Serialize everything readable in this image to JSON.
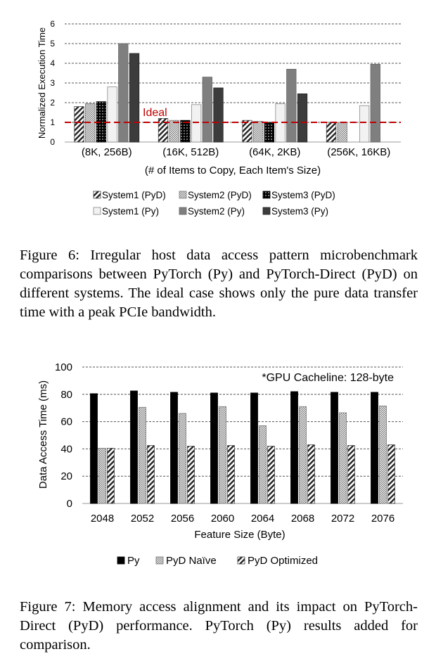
{
  "figure6": {
    "caption": "Figure 6: Irregular host data access pattern microbenchmark comparisons between PyTorch (Py) and PyTorch-Direct (PyD) on different systems. The ideal case shows only the pure data transfer time with a peak PCIe bandwidth.",
    "ideal_label": "Ideal",
    "chart_data": {
      "type": "bar",
      "ylabel": "Normalized Execution Time",
      "xlabel": "(# of Items to Copy, Each Item's Size)",
      "ylim": [
        0,
        6
      ],
      "yticks": [
        "0",
        "1",
        "2",
        "3",
        "4",
        "5",
        "6"
      ],
      "grid": true,
      "legend_position": "bottom",
      "categories": [
        "(8K, 256B)",
        "(16K, 512B)",
        "(64K, 2KB)",
        "(256K, 16KB)"
      ],
      "ideal_line": 1,
      "series": [
        {
          "name": "System1 (PyD)",
          "values": [
            1.8,
            1.2,
            1.1,
            1.0
          ]
        },
        {
          "name": "System2 (PyD)",
          "values": [
            1.95,
            1.1,
            1.05,
            1.0
          ]
        },
        {
          "name": "System3 (PyD)",
          "values": [
            2.05,
            1.1,
            1.0,
            null
          ]
        },
        {
          "name": "System1 (Py)",
          "values": [
            2.8,
            1.9,
            1.95,
            1.85
          ]
        },
        {
          "name": "System2 (Py)",
          "values": [
            5.0,
            3.3,
            3.7,
            3.95
          ]
        },
        {
          "name": "System3 (Py)",
          "values": [
            4.5,
            2.75,
            2.45,
            null
          ]
        }
      ],
      "colors": {
        "ideal": "#c00000",
        "dark": "#3c3c3c",
        "mid": "#7f7f7f"
      }
    }
  },
  "figure7": {
    "caption": "Figure 7: Memory access alignment and its impact on PyTorch-Direct (PyD) performance. PyTorch (Py) results added for comparison.",
    "note": "*GPU Cacheline: 128-byte",
    "chart_data": {
      "type": "bar",
      "ylabel": "Data Access Time (ms)",
      "xlabel": "Feature Size (Byte)",
      "ylim": [
        0,
        100
      ],
      "yticks": [
        "0",
        "20",
        "40",
        "60",
        "80",
        "100"
      ],
      "grid": true,
      "legend_position": "bottom",
      "categories": [
        "2048",
        "2052",
        "2056",
        "2060",
        "2064",
        "2068",
        "2072",
        "2076"
      ],
      "series": [
        {
          "name": "Py",
          "values": [
            80.5,
            82.5,
            81.5,
            81,
            81,
            82,
            81.5,
            81.5
          ]
        },
        {
          "name": "PyD Naïve",
          "values": [
            40.5,
            70.5,
            66,
            71,
            57,
            71,
            66.5,
            71.5
          ]
        },
        {
          "name": "PyD Optimized",
          "values": [
            40.5,
            42.5,
            42,
            42.5,
            42,
            43,
            42.5,
            43
          ]
        }
      ]
    }
  }
}
